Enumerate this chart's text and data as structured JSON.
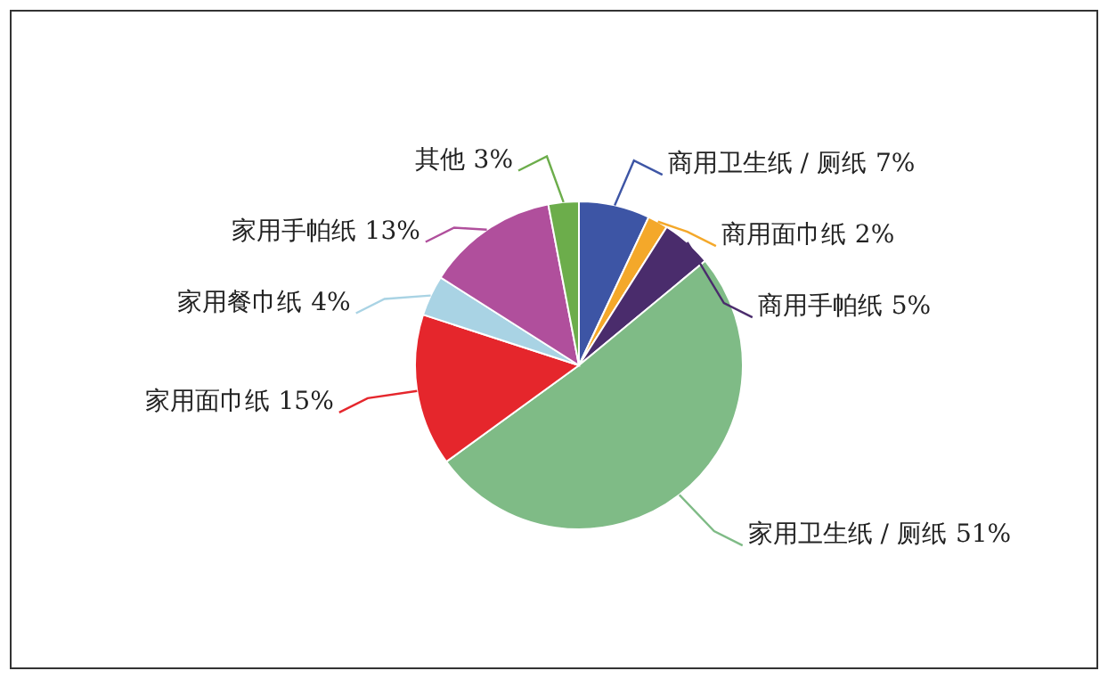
{
  "chart_data": {
    "type": "pie",
    "categories": [
      "商用卫生纸 / 厕纸",
      "商用面巾纸",
      "商用手帕纸",
      "家用卫生纸 / 厕纸",
      "家用面巾纸",
      "家用餐巾纸",
      "家用手帕纸",
      "其他"
    ],
    "values": [
      7,
      2,
      5,
      51,
      15,
      4,
      13,
      3
    ],
    "colors": [
      "#3d55a5",
      "#f4a82a",
      "#4a2c6c",
      "#7fbb86",
      "#e5262c",
      "#a9d3e4",
      "#b04f9c",
      "#6cad4b"
    ],
    "value_labels": [
      "7%",
      "2%",
      "5%",
      "51%",
      "15%",
      "4%",
      "13%",
      "3%"
    ]
  }
}
